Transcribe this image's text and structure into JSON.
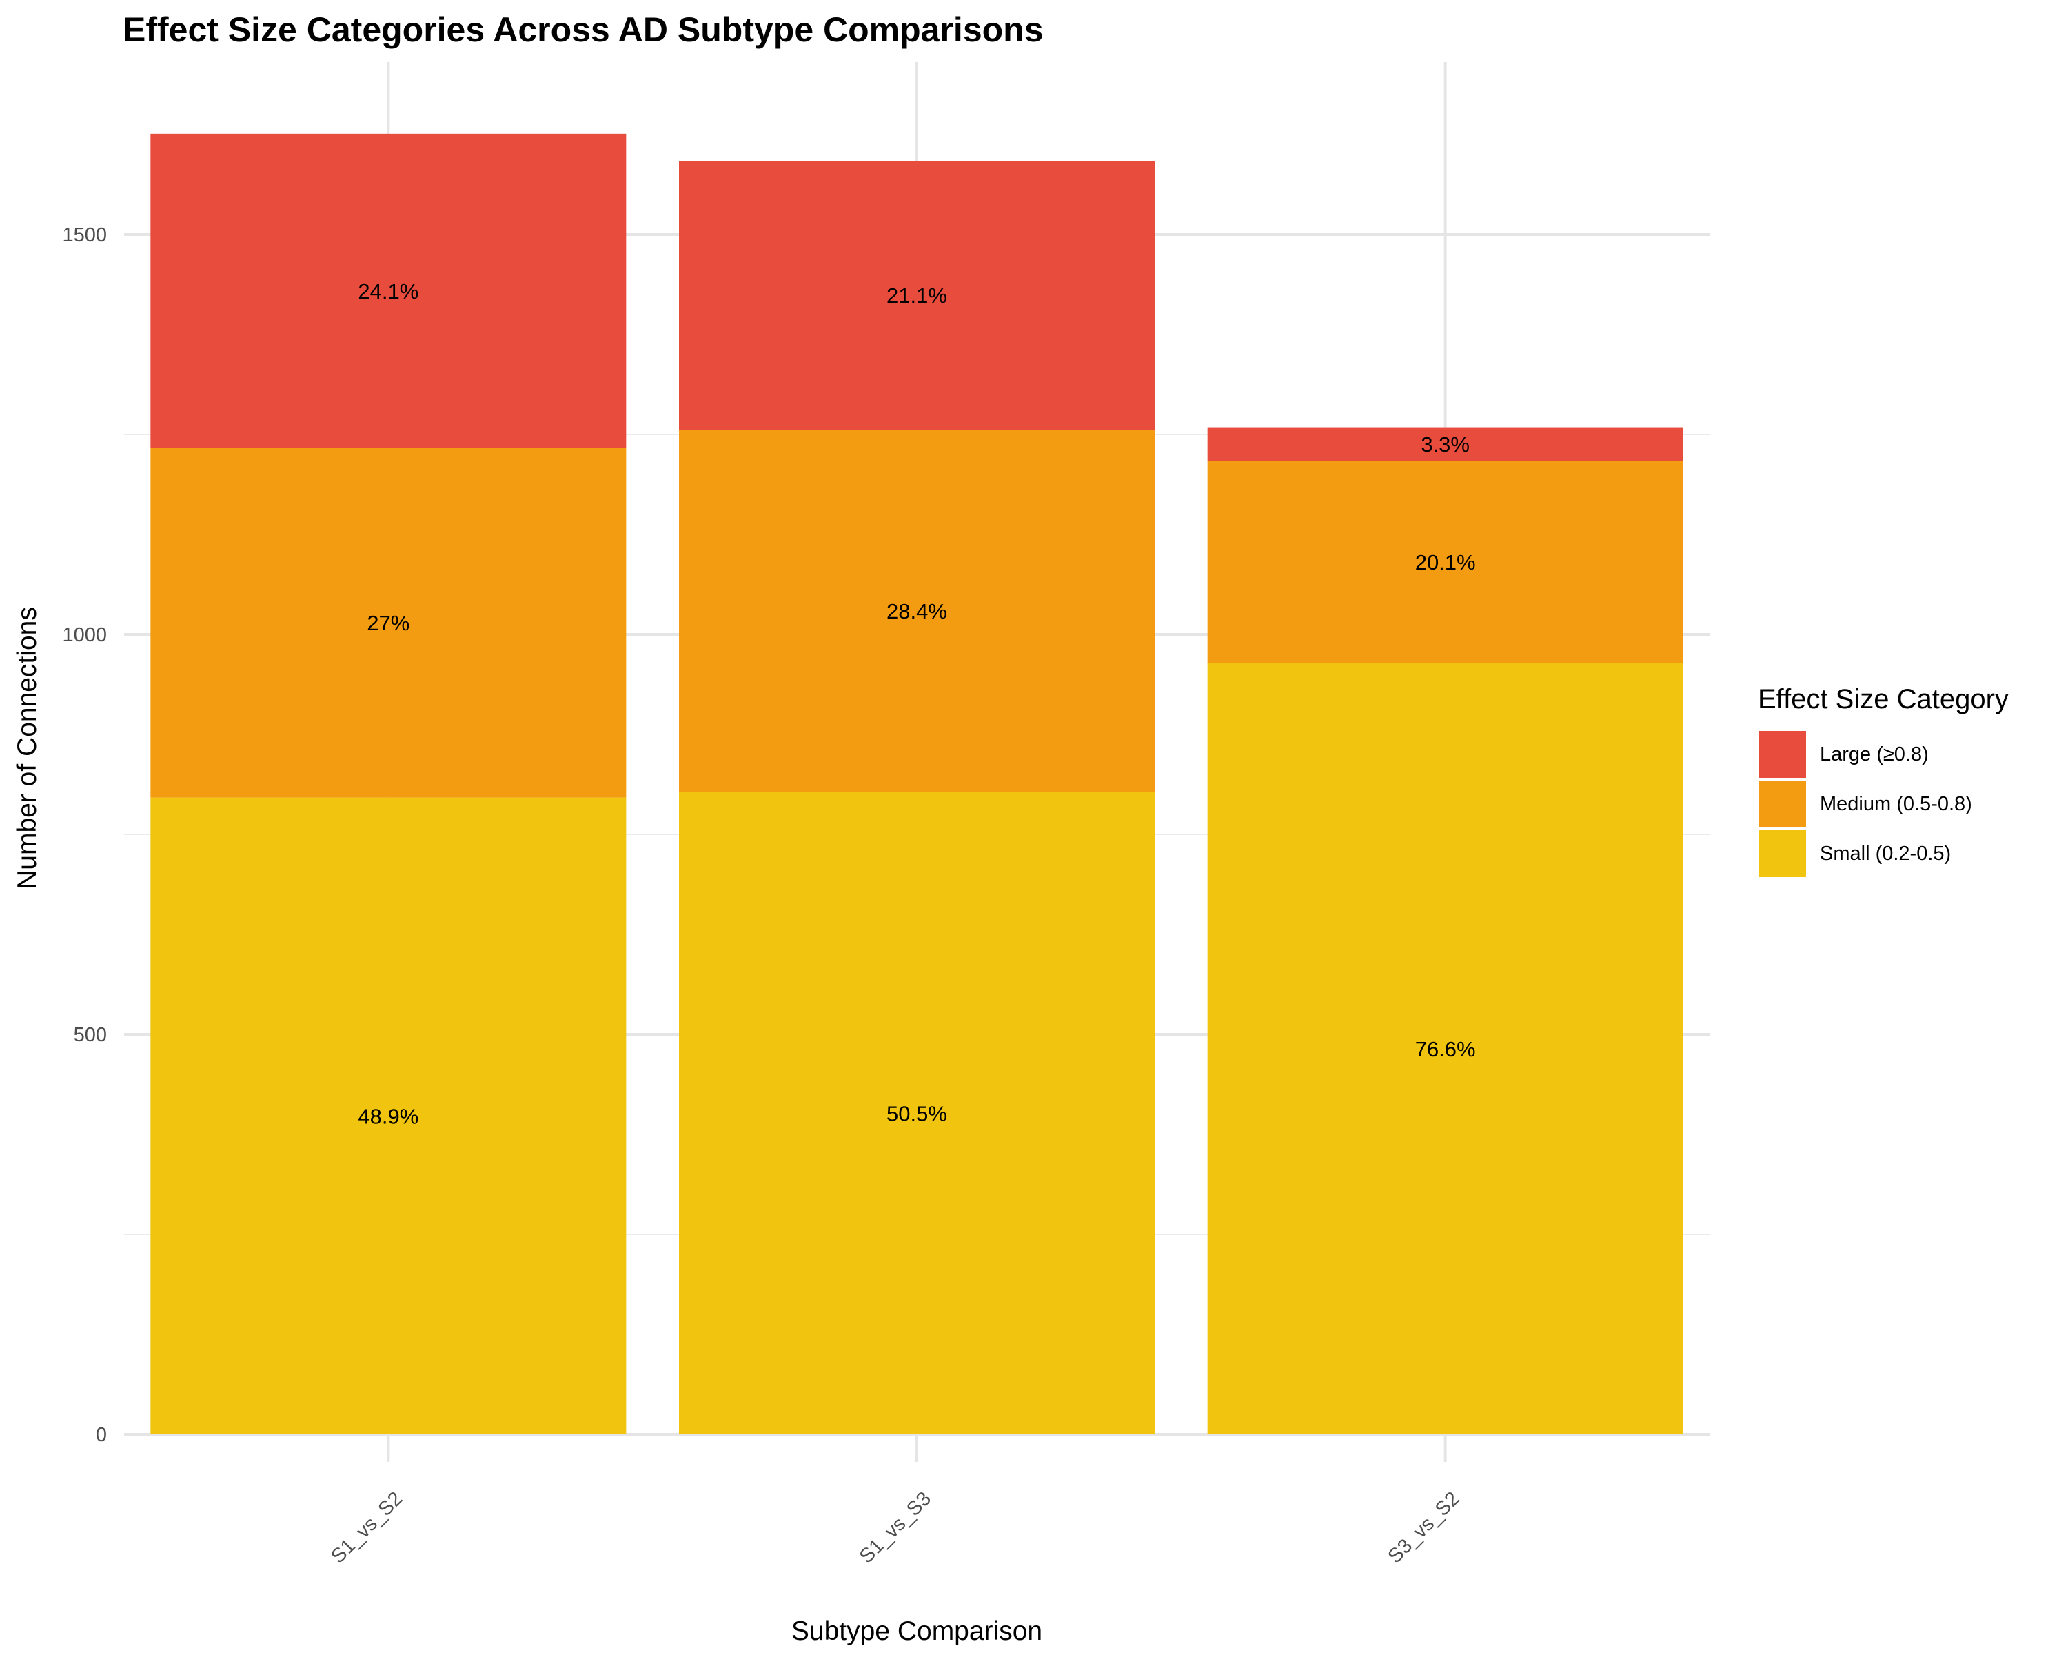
{
  "chart_data": {
    "type": "bar",
    "stacked": true,
    "title": "Effect Size Categories Across AD Subtype Comparisons",
    "xlabel": "Subtype Comparison",
    "ylabel": "Number of Connections",
    "categories": [
      "S1_vs_S2",
      "S1_vs_S3",
      "S3_vs_S2"
    ],
    "ylim": [
      0,
      1650
    ],
    "yticks": [
      0,
      500,
      1000,
      1500
    ],
    "grid": true,
    "legend": {
      "title": "Effect Size Category",
      "position": "right"
    },
    "series": [
      {
        "name": "Small (0.2-0.5)",
        "color": "#F1C40F",
        "values": [
          796,
          803,
          964
        ],
        "labels": [
          "48.9%",
          "50.5%",
          "76.6%"
        ]
      },
      {
        "name": "Medium (0.5-0.8)",
        "color": "#F39C12",
        "values": [
          437,
          453,
          253
        ],
        "labels": [
          "27%",
          "28.4%",
          "20.1%"
        ]
      },
      {
        "name": "Large (≥0.8)",
        "color": "#E74C3C",
        "values": [
          393,
          336,
          42
        ],
        "labels": [
          "24.1%",
          "21.1%",
          "3.3%"
        ]
      }
    ]
  }
}
